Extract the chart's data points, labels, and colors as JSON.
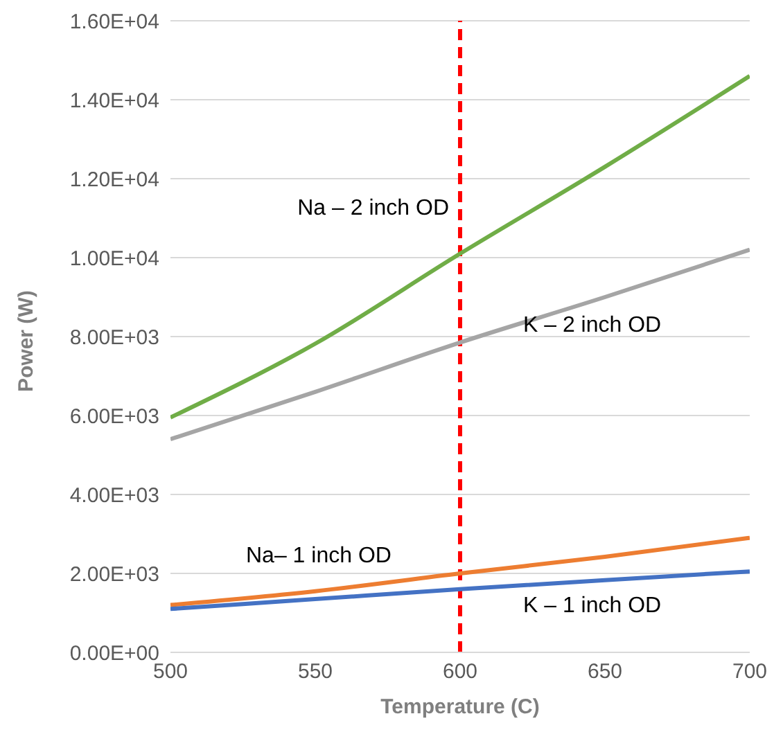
{
  "chart_data": {
    "type": "line",
    "xlabel": "Temperature (C)",
    "ylabel": "Power (W)",
    "x": [
      500,
      550,
      600,
      650,
      700
    ],
    "series": [
      {
        "name": "Na – 2 inch OD",
        "color": "#70ad47",
        "values": [
          5950,
          7820,
          10100,
          12300,
          14600
        ]
      },
      {
        "name": "K – 2 inch OD",
        "color": "#a5a5a5",
        "values": [
          5400,
          6600,
          7850,
          9000,
          10200
        ]
      },
      {
        "name": "Na– 1 inch OD",
        "color": "#ed7d31",
        "values": [
          1200,
          1550,
          2000,
          2420,
          2900
        ]
      },
      {
        "name": "K – 1 inch OD",
        "color": "#4472c4",
        "values": [
          1100,
          1350,
          1600,
          1830,
          2050
        ]
      }
    ],
    "xlim": [
      500,
      700
    ],
    "xticks": [
      500,
      550,
      600,
      650,
      700
    ],
    "ylim": [
      0,
      16000
    ],
    "yticks": [
      {
        "value": 0,
        "label": "0.00E+00"
      },
      {
        "value": 2000,
        "label": "2.00E+03"
      },
      {
        "value": 4000,
        "label": "4.00E+03"
      },
      {
        "value": 6000,
        "label": "6.00E+03"
      },
      {
        "value": 8000,
        "label": "8.00E+03"
      },
      {
        "value": 10000,
        "label": "1.00E+04"
      },
      {
        "value": 12000,
        "label": "1.20E+04"
      },
      {
        "value": 14000,
        "label": "1.40E+04"
      },
      {
        "value": 16000,
        "label": "1.60E+04"
      }
    ],
    "grid": "y",
    "legend": false,
    "marker": "none",
    "line_style": "solid",
    "ref_lines": [
      {
        "axis": "x",
        "value": 600,
        "color": "#ff0000",
        "line_style": "dashed"
      }
    ]
  }
}
